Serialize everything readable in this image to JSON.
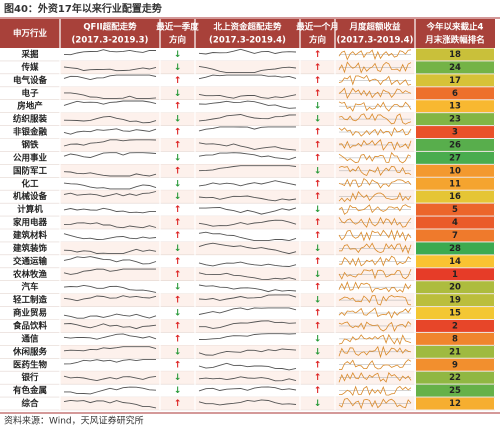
{
  "title": "图40：外资17年以来行业配置走势",
  "header": [
    [
      "申万行业"
    ],
    [
      "QFII超配走势",
      "(2017.3-2019.3)"
    ],
    [
      "最近一季度",
      "方向"
    ],
    [
      "北上资金超配走势",
      "(2017.3-2019.4)"
    ],
    [
      "最近一个月",
      "方向"
    ],
    [
      "月度超额收益",
      "(2017.3-2019.4)"
    ],
    [
      "今年以来截止4",
      "月末涨跌幅排名"
    ]
  ],
  "rows": [
    [
      "采掘",
      "↓",
      "↑",
      18
    ],
    [
      "传媒",
      "↓",
      "↑",
      24
    ],
    [
      "电气设备",
      "↑",
      "↑",
      17
    ],
    [
      "电子",
      "↓",
      "↑",
      6
    ],
    [
      "房地产",
      "↑",
      "↓",
      13
    ],
    [
      "纺织服装",
      "↓",
      "↓",
      23
    ],
    [
      "非银金融",
      "↑",
      "↑",
      3
    ],
    [
      "钢铁",
      "↑",
      "↑",
      26
    ],
    [
      "公用事业",
      "↓",
      "↑",
      27
    ],
    [
      "国防军工",
      "↑",
      "↓",
      10
    ],
    [
      "化工",
      "↓",
      "↑",
      11
    ],
    [
      "机械设备",
      "↓",
      "↑",
      16
    ],
    [
      "计算机",
      "↑",
      "↓",
      5
    ],
    [
      "家用电器",
      "↑",
      "↑",
      4
    ],
    [
      "建筑材料",
      "↑",
      "↑",
      7
    ],
    [
      "建筑装饰",
      "↓",
      "↓",
      28
    ],
    [
      "交通运输",
      "↑",
      "↑",
      14
    ],
    [
      "农林牧渔",
      "↑",
      "↓",
      1
    ],
    [
      "汽车",
      "↓",
      "↑",
      20
    ],
    [
      "轻工制造",
      "↑",
      "↓",
      19
    ],
    [
      "商业贸易",
      "↓",
      "↑",
      15
    ],
    [
      "食品饮料",
      "↑",
      "↑",
      2
    ],
    [
      "通信",
      "↑",
      "↓",
      8
    ],
    [
      "休闲服务",
      "↓",
      "↓",
      21
    ],
    [
      "医药生物",
      "↑",
      "↑",
      9
    ],
    [
      "银行",
      "↓",
      "↑",
      22
    ],
    [
      "有色金属",
      "↓",
      "↑",
      25
    ],
    [
      "综合",
      "↑",
      "↓",
      12
    ]
  ],
  "source": "资料来源：Wind，天风证券研究所"
}
